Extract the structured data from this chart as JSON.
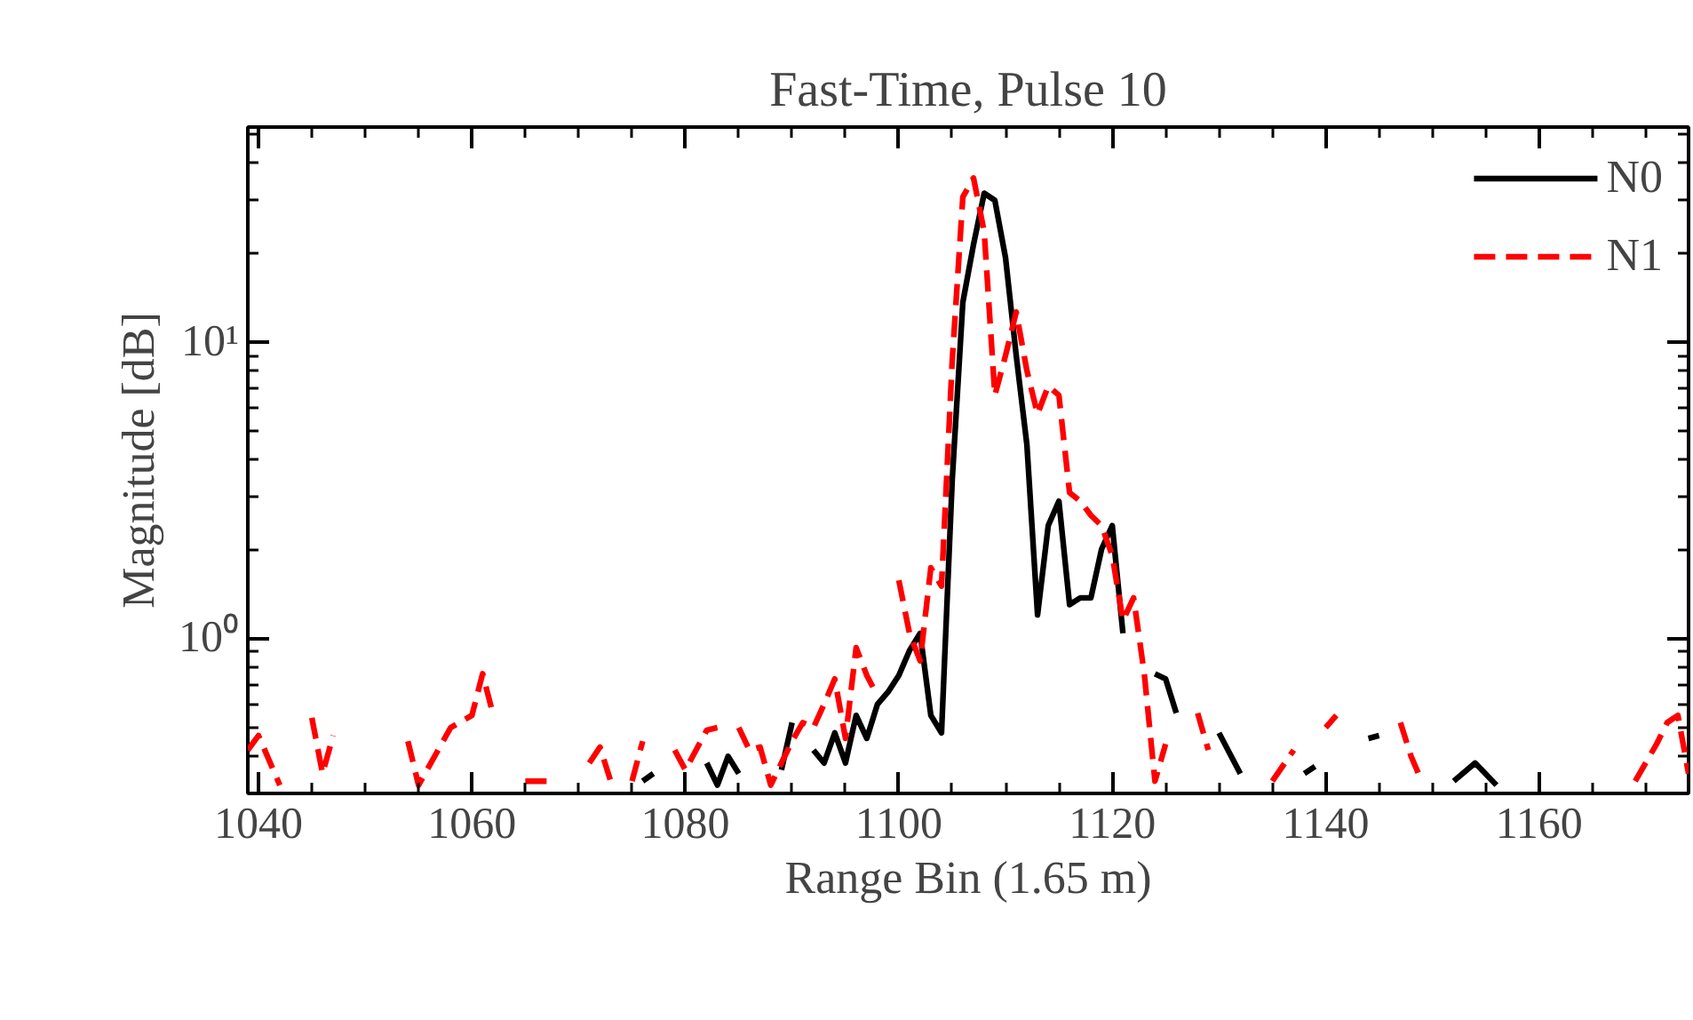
{
  "chart_data": {
    "type": "line",
    "title": "Fast-Time, Pulse 10",
    "xlabel": "Range Bin (1.65 m)",
    "ylabel": "Magnitude [dB]",
    "log": "y",
    "grid": false,
    "legend": "top right",
    "marker": "none",
    "xlim": [
      1039,
      1174
    ],
    "xticks": [
      1040,
      1060,
      1080,
      1100,
      1120,
      1140,
      1160
    ],
    "ylim": [
      0.3,
      53
    ],
    "yticks": [
      {
        "value": 1,
        "label": "10⁰"
      },
      {
        "value": 10,
        "label": "10¹"
      }
    ],
    "series": [
      {
        "name": "N0",
        "color": "#000000",
        "line_style": "solid",
        "x": [
          1076,
          1077,
          1078,
          1082,
          1083,
          1084,
          1085,
          1086,
          1089,
          1090,
          1091,
          1092,
          1093,
          1094,
          1095,
          1096,
          1097,
          1098,
          1099,
          1100,
          1101,
          1102,
          1103,
          1104,
          1105,
          1106,
          1107,
          1108,
          1109,
          1110,
          1111,
          1112,
          1113,
          1114,
          1115,
          1116,
          1117,
          1118,
          1119,
          1120,
          1121,
          1122,
          1124,
          1125,
          1126,
          1127,
          1130,
          1132,
          1133,
          1138,
          1139,
          1140,
          1144,
          1145,
          1146,
          1152,
          1154,
          1156
        ],
        "values": [
          0.33,
          0.35,
          null,
          0.38,
          0.32,
          0.4,
          0.35,
          null,
          0.36,
          0.52,
          null,
          0.42,
          0.38,
          0.48,
          0.38,
          0.55,
          0.46,
          0.6,
          0.66,
          0.75,
          0.91,
          1.04,
          0.55,
          0.48,
          3.4,
          13.6,
          21.3,
          31.7,
          30,
          19.2,
          9,
          4.5,
          1.2,
          2.4,
          2.9,
          1.3,
          1.37,
          1.37,
          2.0,
          2.4,
          1.04,
          null,
          0.76,
          0.73,
          0.56,
          null,
          0.48,
          0.35,
          null,
          0.35,
          0.37,
          null,
          0.46,
          0.47,
          null,
          0.33,
          0.38,
          0.32
        ]
      },
      {
        "name": "N1",
        "color": "#ff0000",
        "line_style": "dashed",
        "x": [
          1039,
          1040,
          1042,
          1043,
          1045,
          1046,
          1047,
          1048,
          1054,
          1055,
          1058,
          1060,
          1061,
          1062,
          1063,
          1065,
          1067,
          1069,
          1071,
          1072,
          1073,
          1074,
          1075,
          1076,
          1077,
          1079,
          1080,
          1082,
          1083,
          1084,
          1085,
          1086,
          1087,
          1088,
          1089,
          1090,
          1091,
          1092,
          1093,
          1094,
          1095,
          1096,
          1097,
          1098,
          1099,
          1100,
          1101,
          1102,
          1103,
          1104,
          1105,
          1106,
          1107,
          1108,
          1109,
          1110,
          1111,
          1112,
          1113,
          1114,
          1115,
          1116,
          1117,
          1118,
          1119,
          1120,
          1121,
          1122,
          1123,
          1124,
          1125,
          1126,
          1128,
          1129,
          1130,
          1135,
          1137,
          1138,
          1140,
          1141,
          1142,
          1147,
          1148,
          1149,
          1150,
          1169,
          1171,
          1172,
          1173,
          1174
        ],
        "values": [
          0.42,
          0.47,
          0.32,
          null,
          0.54,
          0.35,
          0.47,
          null,
          0.45,
          0.32,
          0.5,
          0.55,
          0.76,
          0.55,
          null,
          0.33,
          0.33,
          null,
          0.38,
          0.43,
          0.33,
          null,
          0.33,
          0.45,
          null,
          0.42,
          0.36,
          0.49,
          0.5,
          null,
          0.5,
          0.42,
          0.43,
          0.32,
          0.38,
          0.45,
          0.52,
          0.5,
          0.6,
          0.73,
          0.46,
          0.93,
          0.75,
          0.64,
          null,
          1.57,
          1.04,
          0.84,
          1.73,
          1.5,
          8.6,
          30.8,
          35.7,
          23.5,
          6.6,
          9,
          12.6,
          8.0,
          5.7,
          7.1,
          6.6,
          3.1,
          2.9,
          2.6,
          2.4,
          1.9,
          1.15,
          1.37,
          0.76,
          0.33,
          0.44,
          null,
          0.56,
          0.42,
          null,
          0.33,
          0.42,
          null,
          0.5,
          0.55,
          null,
          0.52,
          0.4,
          0.33,
          null,
          0.33,
          0.44,
          0.52,
          0.55,
          0.35
        ]
      }
    ]
  }
}
